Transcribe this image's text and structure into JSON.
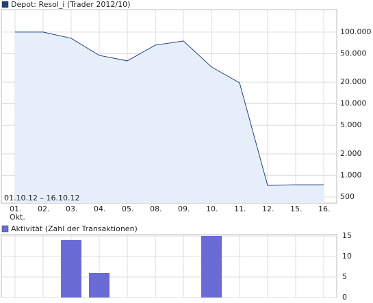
{
  "chart_data": [
    {
      "type": "area",
      "log_scale": true,
      "grid": true,
      "annotation": "01.10.12 – 16.10.12",
      "categories": [
        "01.\nOkt.",
        "02.",
        "03.",
        "04.",
        "05.",
        "08.",
        "09.",
        "10.",
        "11.",
        "12.",
        "15.",
        "16."
      ],
      "series": [
        {
          "name": "Depot: Resol_i (Trader 2012/10)",
          "color": "#1f3f7f",
          "fill": "#e6eefa",
          "values": [
            100000,
            100000,
            82000,
            47300,
            39700,
            65800,
            75100,
            32600,
            19600,
            725,
            740,
            740
          ]
        }
      ],
      "ylim": [
        410,
        206000
      ],
      "yticks": [
        500,
        {
          "value": 1000,
          "label": "1.000"
        },
        {
          "value": 2000,
          "label": "2.000"
        },
        {
          "value": 5000,
          "label": "5.000"
        },
        {
          "value": 10000,
          "label": "10.000"
        },
        {
          "value": 20000,
          "label": "20.000"
        },
        {
          "value": 50000,
          "label": "50.000"
        },
        {
          "value": 100000,
          "label": "100.000"
        }
      ]
    },
    {
      "type": "bar",
      "grid": true,
      "series": [
        {
          "name": "Aktivität (Zahl der Transaktionen)",
          "color": "#6b6bd6",
          "values": [
            0,
            0,
            14,
            6,
            0,
            0,
            0,
            15,
            0,
            0,
            0,
            0
          ]
        }
      ],
      "ylim": [
        0,
        15
      ],
      "yticks": [
        0,
        5,
        10,
        15
      ]
    }
  ]
}
